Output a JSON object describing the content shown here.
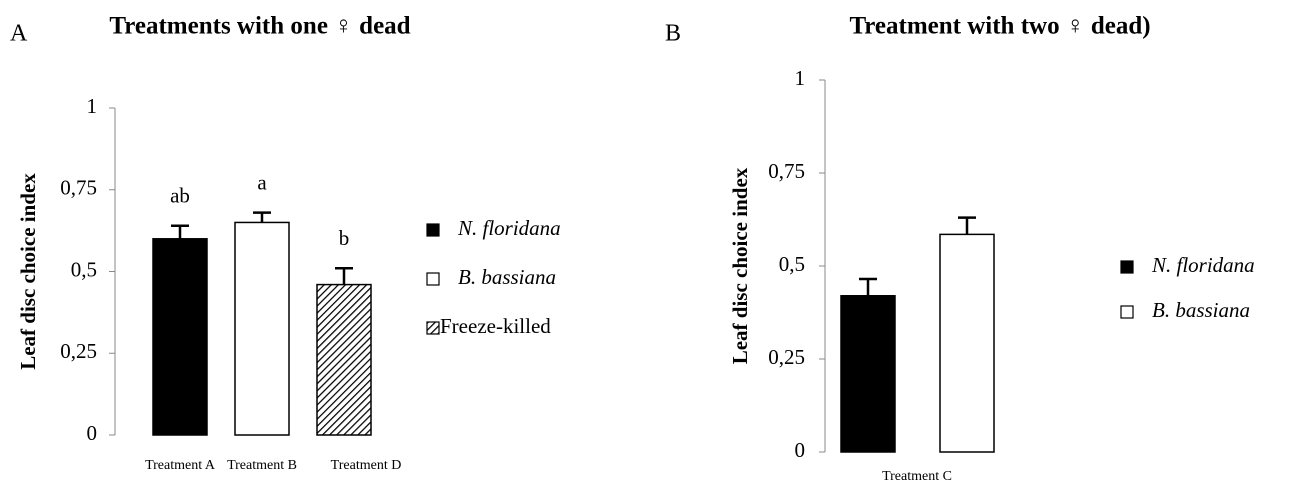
{
  "chart_data": [
    {
      "type": "bar",
      "panel": "A",
      "title": "Treatments with one ♀ dead",
      "y_label": "Leaf disc choice index",
      "categories": [
        "Treatment A",
        "Treatment B",
        "Treatment D"
      ],
      "series": [
        {
          "name": "N. floridana",
          "color": "#000000",
          "italic": true,
          "values": [
            0.6,
            null,
            null
          ],
          "errors": [
            0.04,
            null,
            null
          ]
        },
        {
          "name": "B. bassiana",
          "color": "#ffffff",
          "italic": true,
          "values": [
            null,
            0.65,
            null
          ],
          "errors": [
            null,
            0.03,
            null
          ]
        },
        {
          "name": "Freeze-killed",
          "color": "hatch",
          "italic": false,
          "values": [
            null,
            null,
            0.46
          ],
          "errors": [
            null,
            null,
            0.05
          ]
        }
      ],
      "annotations": [
        "ab",
        "a",
        "b"
      ],
      "ylim": [
        0,
        1
      ],
      "yticks": [
        0,
        {
          "value": 0.25,
          "label": "0,25"
        },
        {
          "value": 0.5,
          "label": "0,5"
        },
        {
          "value": 0.75,
          "label": "0,75"
        },
        1
      ]
    },
    {
      "type": "bar",
      "panel": "B",
      "title": "Treatment with two ♀ dead)",
      "y_label": "Leaf disc choice index",
      "categories": [
        "Treatment C"
      ],
      "series": [
        {
          "name": "N. floridana",
          "color": "#000000",
          "italic": true,
          "values": [
            0.42
          ],
          "errors": [
            0.045
          ]
        },
        {
          "name": "B. bassiana",
          "color": "#ffffff",
          "italic": true,
          "values": [
            0.585
          ],
          "errors": [
            0.045
          ]
        }
      ],
      "ylim": [
        0,
        1
      ],
      "yticks": [
        0,
        {
          "value": 0.25,
          "label": "0,25"
        },
        {
          "value": 0.5,
          "label": "0,5"
        },
        {
          "value": 0.75,
          "label": "0,75"
        },
        1
      ]
    }
  ]
}
